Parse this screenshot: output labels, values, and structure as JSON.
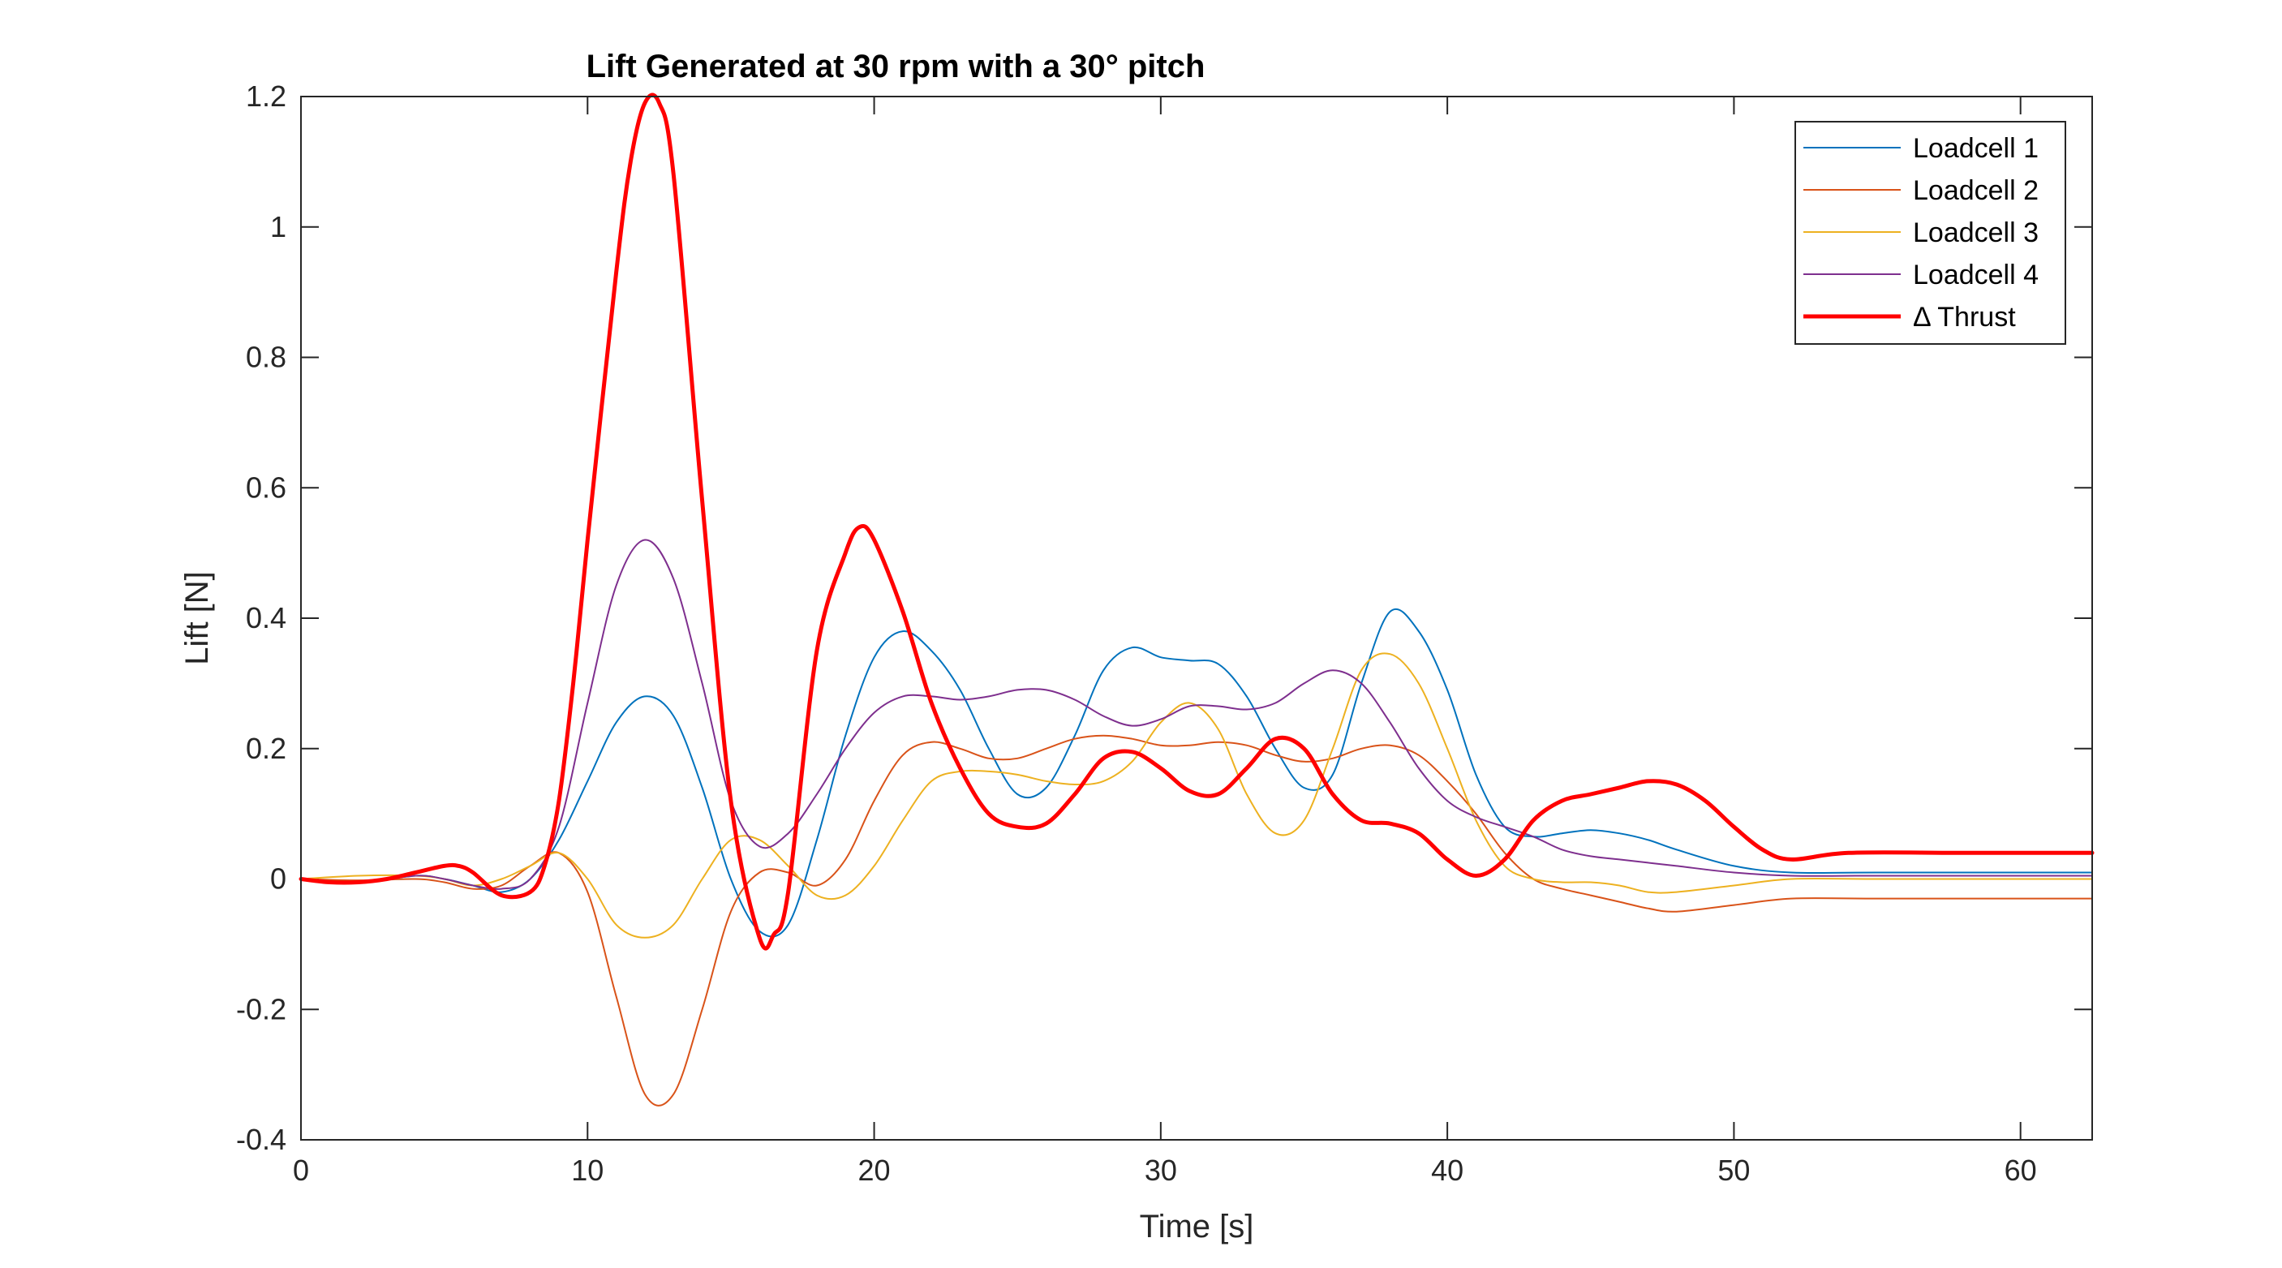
{
  "chart_data": {
    "type": "line",
    "title": "Lift Generated at 30 rpm with a 30° pitch",
    "xlabel": "Time [s]",
    "ylabel": "Lift [N]",
    "xlim": [
      0,
      62.5
    ],
    "ylim": [
      -0.4,
      1.2
    ],
    "xticks": [
      0,
      10,
      20,
      30,
      40,
      50,
      60
    ],
    "yticks": [
      -0.4,
      -0.2,
      0,
      0.2,
      0.4,
      0.6,
      0.8,
      1,
      1.2
    ],
    "xtick_labels": [
      "0",
      "10",
      "20",
      "30",
      "40",
      "50",
      "60"
    ],
    "ytick_labels": [
      "-0.4",
      "-0.2",
      "0",
      "0.2",
      "0.4",
      "0.6",
      "0.8",
      "1",
      "1.2"
    ],
    "grid": false,
    "legend_position": "top-right",
    "series": [
      {
        "name": "Loadcell 1",
        "color": "#0072BD",
        "width": 2,
        "x": [
          0,
          2,
          4,
          5,
          6,
          7,
          8,
          9,
          10,
          11,
          12,
          13,
          14,
          15,
          16,
          17,
          18,
          19,
          20,
          21,
          22,
          23,
          24,
          25,
          26,
          27,
          28,
          29,
          30,
          31,
          32,
          33,
          34,
          35,
          36,
          37,
          38,
          39,
          40,
          41,
          42,
          43,
          44,
          45,
          46,
          47,
          48,
          50,
          52,
          55,
          62.5
        ],
        "y": [
          0,
          -0.005,
          0.005,
          0,
          -0.01,
          -0.02,
          0,
          0.06,
          0.15,
          0.24,
          0.28,
          0.25,
          0.14,
          0.0,
          -0.08,
          -0.07,
          0.06,
          0.22,
          0.34,
          0.38,
          0.35,
          0.29,
          0.2,
          0.13,
          0.14,
          0.22,
          0.32,
          0.355,
          0.34,
          0.335,
          0.33,
          0.28,
          0.2,
          0.14,
          0.16,
          0.3,
          0.41,
          0.38,
          0.29,
          0.16,
          0.08,
          0.065,
          0.07,
          0.075,
          0.07,
          0.06,
          0.045,
          0.02,
          0.01,
          0.01,
          0.01
        ]
      },
      {
        "name": "Loadcell 2",
        "color": "#D95319",
        "width": 2,
        "x": [
          0,
          2,
          4,
          5,
          6,
          7,
          8,
          9,
          10,
          11,
          12,
          13,
          14,
          15,
          16,
          17,
          18,
          19,
          20,
          21,
          22,
          23,
          24,
          25,
          26,
          27,
          28,
          29,
          30,
          31,
          32,
          33,
          34,
          35,
          36,
          37,
          38,
          39,
          40,
          41,
          42,
          43,
          44,
          45,
          46,
          47,
          48,
          50,
          52,
          55,
          62.5
        ],
        "y": [
          0,
          -0.002,
          0.0,
          -0.005,
          -0.015,
          -0.01,
          0.02,
          0.04,
          -0.02,
          -0.18,
          -0.33,
          -0.33,
          -0.2,
          -0.05,
          0.01,
          0.01,
          -0.01,
          0.03,
          0.12,
          0.19,
          0.21,
          0.2,
          0.185,
          0.185,
          0.2,
          0.215,
          0.22,
          0.215,
          0.205,
          0.205,
          0.21,
          0.205,
          0.19,
          0.18,
          0.185,
          0.2,
          0.205,
          0.19,
          0.15,
          0.1,
          0.04,
          0.0,
          -0.015,
          -0.025,
          -0.035,
          -0.045,
          -0.05,
          -0.04,
          -0.03,
          -0.03,
          -0.03
        ]
      },
      {
        "name": "Loadcell 3",
        "color": "#EDB120",
        "width": 2,
        "x": [
          0,
          2,
          4,
          5,
          6,
          7,
          8,
          9,
          10,
          11,
          12,
          13,
          14,
          15,
          16,
          17,
          18,
          19,
          20,
          21,
          22,
          23,
          24,
          25,
          26,
          27,
          28,
          29,
          30,
          31,
          32,
          33,
          34,
          35,
          36,
          37,
          38,
          39,
          40,
          41,
          42,
          43,
          44,
          45,
          46,
          47,
          48,
          50,
          52,
          55,
          62.5
        ],
        "y": [
          0,
          0.005,
          0.005,
          0.0,
          -0.01,
          0.0,
          0.02,
          0.04,
          0.0,
          -0.07,
          -0.09,
          -0.07,
          0.0,
          0.06,
          0.06,
          0.02,
          -0.025,
          -0.025,
          0.02,
          0.09,
          0.15,
          0.165,
          0.165,
          0.16,
          0.15,
          0.145,
          0.15,
          0.18,
          0.24,
          0.27,
          0.23,
          0.13,
          0.07,
          0.09,
          0.2,
          0.32,
          0.345,
          0.3,
          0.2,
          0.09,
          0.02,
          0.0,
          -0.005,
          -0.005,
          -0.01,
          -0.02,
          -0.02,
          -0.01,
          0.0,
          0.0,
          0.0
        ]
      },
      {
        "name": "Loadcell 4",
        "color": "#7E2F8E",
        "width": 2,
        "x": [
          0,
          2,
          4,
          5,
          6,
          7,
          8,
          9,
          10,
          11,
          12,
          13,
          14,
          15,
          16,
          17,
          18,
          19,
          20,
          21,
          22,
          23,
          24,
          25,
          26,
          27,
          28,
          29,
          30,
          31,
          32,
          33,
          34,
          35,
          36,
          37,
          38,
          39,
          40,
          41,
          42,
          43,
          44,
          45,
          46,
          47,
          48,
          50,
          52,
          55,
          62.5
        ],
        "y": [
          0,
          -0.005,
          0.005,
          0.0,
          -0.01,
          -0.015,
          0.0,
          0.08,
          0.27,
          0.45,
          0.52,
          0.46,
          0.3,
          0.12,
          0.05,
          0.07,
          0.13,
          0.2,
          0.255,
          0.28,
          0.28,
          0.275,
          0.28,
          0.29,
          0.29,
          0.275,
          0.25,
          0.235,
          0.245,
          0.265,
          0.265,
          0.26,
          0.27,
          0.3,
          0.32,
          0.3,
          0.24,
          0.17,
          0.12,
          0.095,
          0.08,
          0.065,
          0.045,
          0.035,
          0.03,
          0.025,
          0.02,
          0.01,
          0.005,
          0.005,
          0.005
        ]
      },
      {
        "name": "Δ Thrust",
        "color": "#FF0000",
        "width": 5,
        "x": [
          0,
          1,
          2,
          3,
          4,
          5,
          5.5,
          6,
          7,
          8,
          8.5,
          9,
          9.5,
          10,
          11,
          11.5,
          12,
          12.5,
          13,
          14,
          15,
          16,
          16.5,
          17,
          18,
          19,
          19.5,
          20,
          21,
          22,
          23,
          24,
          25,
          26,
          27,
          28,
          29,
          30,
          31,
          32,
          33,
          34,
          35,
          36,
          37,
          38,
          39,
          40,
          41,
          42,
          43,
          44,
          45,
          46,
          47,
          48,
          49,
          50,
          51,
          52,
          54,
          58,
          62.5
        ],
        "y": [
          0,
          -0.005,
          -0.005,
          0.0,
          0.01,
          0.02,
          0.02,
          0.01,
          -0.025,
          -0.02,
          0.02,
          0.12,
          0.3,
          0.52,
          0.93,
          1.1,
          1.19,
          1.19,
          1.08,
          0.58,
          0.12,
          -0.09,
          -0.085,
          -0.02,
          0.35,
          0.5,
          0.54,
          0.52,
          0.41,
          0.27,
          0.17,
          0.1,
          0.08,
          0.085,
          0.13,
          0.185,
          0.195,
          0.17,
          0.135,
          0.13,
          0.17,
          0.215,
          0.2,
          0.13,
          0.09,
          0.085,
          0.07,
          0.03,
          0.005,
          0.03,
          0.09,
          0.12,
          0.13,
          0.14,
          0.15,
          0.145,
          0.12,
          0.08,
          0.045,
          0.03,
          0.04,
          0.04,
          0.04
        ]
      }
    ]
  }
}
